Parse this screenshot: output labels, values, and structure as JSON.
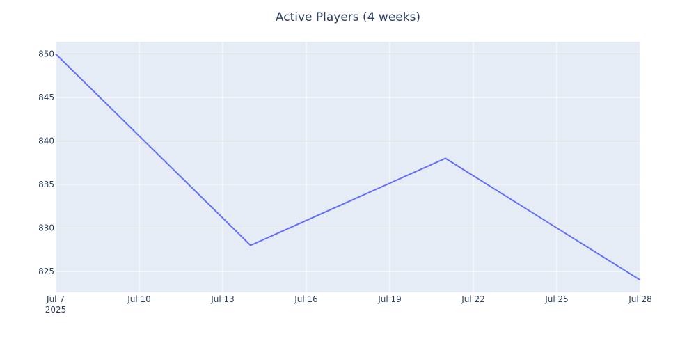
{
  "chart_data": {
    "type": "line",
    "title": "Active Players (4 weeks)",
    "xlabel": "",
    "ylabel": "",
    "x_axis_type": "date",
    "x": [
      "2025-07-07",
      "2025-07-14",
      "2025-07-21",
      "2025-07-28"
    ],
    "series": [
      {
        "values": [
          850,
          828,
          838,
          824
        ],
        "color": "#636efa"
      }
    ],
    "xlim": [
      "2025-07-07",
      "2025-07-28"
    ],
    "ylim": [
      822.6,
      851.4
    ],
    "x_ticks": [
      {
        "value": "2025-07-07",
        "label": "Jul 7",
        "sublabel": "2025"
      },
      {
        "value": "2025-07-10",
        "label": "Jul 10"
      },
      {
        "value": "2025-07-13",
        "label": "Jul 13"
      },
      {
        "value": "2025-07-16",
        "label": "Jul 16"
      },
      {
        "value": "2025-07-19",
        "label": "Jul 19"
      },
      {
        "value": "2025-07-22",
        "label": "Jul 22"
      },
      {
        "value": "2025-07-25",
        "label": "Jul 25"
      },
      {
        "value": "2025-07-28",
        "label": "Jul 28"
      }
    ],
    "y_ticks": [
      {
        "value": 825,
        "label": "825"
      },
      {
        "value": 830,
        "label": "830"
      },
      {
        "value": 835,
        "label": "835"
      },
      {
        "value": 840,
        "label": "840"
      },
      {
        "value": 845,
        "label": "845"
      },
      {
        "value": 850,
        "label": "850"
      }
    ],
    "grid": true,
    "legend": "none",
    "colors": {
      "plot_background": "#e5ecf6",
      "paper_background": "#ffffff",
      "grid": "#ffffff",
      "text": "#2a3f5f"
    }
  }
}
